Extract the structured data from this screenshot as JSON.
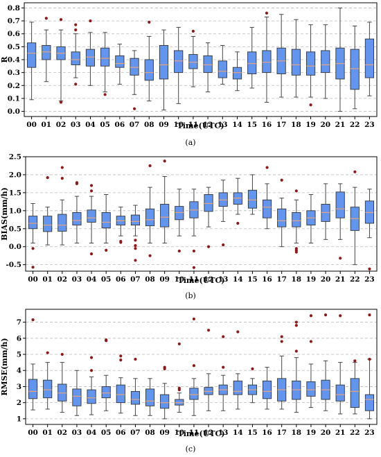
{
  "chart_data": [
    {
      "id": "a",
      "type": "box",
      "caption": "(a)",
      "xlabel": "Time(UTC)",
      "ylabel": "R",
      "ylim": [
        -0.04,
        0.84
      ],
      "yticks": [
        0.0,
        0.1,
        0.2,
        0.3,
        0.4,
        0.5,
        0.6,
        0.7,
        0.8
      ],
      "ytick_labels": [
        "0.0",
        "0.1",
        "0.2",
        "0.3",
        "0.4",
        "0.5",
        "0.6",
        "0.7",
        "0.8"
      ],
      "grid": "horizontal dashed",
      "categories": [
        "00",
        "01",
        "02",
        "03",
        "04",
        "05",
        "06",
        "07",
        "08",
        "09",
        "10",
        "11",
        "12",
        "13",
        "14",
        "15",
        "16",
        "17",
        "18",
        "19",
        "20",
        "21",
        "22",
        "23"
      ],
      "boxes": [
        {
          "whislo": 0.09,
          "q1": 0.34,
          "med": 0.45,
          "q3": 0.53,
          "whishi": 0.69,
          "fliers": []
        },
        {
          "whislo": 0.23,
          "q1": 0.4,
          "med": 0.46,
          "q3": 0.51,
          "whishi": 0.63,
          "fliers": [
            0.72
          ]
        },
        {
          "whislo": 0.08,
          "q1": 0.4,
          "med": 0.45,
          "q3": 0.5,
          "whishi": 0.63,
          "fliers": [
            0.71,
            0.07
          ]
        },
        {
          "whislo": 0.26,
          "q1": 0.36,
          "med": 0.4,
          "q3": 0.46,
          "whishi": 0.6,
          "fliers": [
            0.67,
            0.63,
            0.21
          ]
        },
        {
          "whislo": 0.2,
          "q1": 0.35,
          "med": 0.42,
          "q3": 0.48,
          "whishi": 0.61,
          "fliers": [
            0.7
          ]
        },
        {
          "whislo": 0.15,
          "q1": 0.35,
          "med": 0.41,
          "q3": 0.49,
          "whishi": 0.61,
          "fliers": [
            0.13
          ]
        },
        {
          "whislo": 0.21,
          "q1": 0.34,
          "med": 0.37,
          "q3": 0.43,
          "whishi": 0.52,
          "fliers": []
        },
        {
          "whislo": 0.13,
          "q1": 0.28,
          "med": 0.34,
          "q3": 0.41,
          "whishi": 0.47,
          "fliers": [
            0.02
          ]
        },
        {
          "whislo": 0.08,
          "q1": 0.24,
          "med": 0.3,
          "q3": 0.4,
          "whishi": 0.58,
          "fliers": [
            0.69
          ]
        },
        {
          "whislo": 0.01,
          "q1": 0.25,
          "med": 0.36,
          "q3": 0.51,
          "whishi": 0.63,
          "fliers": []
        },
        {
          "whislo": 0.06,
          "q1": 0.3,
          "med": 0.39,
          "q3": 0.47,
          "whishi": 0.65,
          "fliers": []
        },
        {
          "whislo": 0.19,
          "q1": 0.33,
          "med": 0.38,
          "q3": 0.44,
          "whishi": 0.58,
          "fliers": [
            0.62
          ]
        },
        {
          "whislo": 0.15,
          "q1": 0.3,
          "med": 0.36,
          "q3": 0.43,
          "whishi": 0.53,
          "fliers": []
        },
        {
          "whislo": 0.21,
          "q1": 0.26,
          "med": 0.31,
          "q3": 0.39,
          "whishi": 0.51,
          "fliers": []
        },
        {
          "whislo": 0.16,
          "q1": 0.25,
          "med": 0.3,
          "q3": 0.34,
          "whishi": 0.46,
          "fliers": []
        },
        {
          "whislo": 0.18,
          "q1": 0.29,
          "med": 0.37,
          "q3": 0.46,
          "whishi": 0.65,
          "fliers": []
        },
        {
          "whislo": 0.07,
          "q1": 0.3,
          "med": 0.38,
          "q3": 0.47,
          "whishi": 0.73,
          "fliers": [
            0.76
          ]
        },
        {
          "whislo": 0.11,
          "q1": 0.29,
          "med": 0.39,
          "q3": 0.49,
          "whishi": 0.75,
          "fliers": []
        },
        {
          "whislo": 0.11,
          "q1": 0.28,
          "med": 0.36,
          "q3": 0.48,
          "whishi": 0.71,
          "fliers": []
        },
        {
          "whislo": 0.11,
          "q1": 0.28,
          "med": 0.35,
          "q3": 0.46,
          "whishi": 0.67,
          "fliers": [
            0.05
          ]
        },
        {
          "whislo": 0.1,
          "q1": 0.3,
          "med": 0.36,
          "q3": 0.47,
          "whishi": 0.67,
          "fliers": []
        },
        {
          "whislo": 0.0,
          "q1": 0.25,
          "med": 0.37,
          "q3": 0.49,
          "whishi": 0.8,
          "fliers": []
        },
        {
          "whislo": 0.02,
          "q1": 0.17,
          "med": 0.33,
          "q3": 0.48,
          "whishi": 0.66,
          "fliers": []
        },
        {
          "whislo": 0.12,
          "q1": 0.26,
          "med": 0.36,
          "q3": 0.56,
          "whishi": 0.69,
          "fliers": []
        }
      ],
      "colors": {
        "box_fill": "#6495ed",
        "box_edge": "#333333",
        "median": "#e8a27c",
        "whisker": "#444444",
        "flier": "#8b1a1a",
        "grid": "#bbbbbb"
      }
    },
    {
      "id": "b",
      "type": "box",
      "caption": "(b)",
      "xlabel": "Time(UTC)",
      "ylabel": "BIAS(mm/h)",
      "ylim": [
        -0.68,
        2.5
      ],
      "yticks": [
        -0.5,
        0.0,
        0.5,
        1.0,
        1.5,
        2.0,
        2.5
      ],
      "ytick_labels": [
        "-0.5",
        "0.0",
        "0.5",
        "1.0",
        "1.5",
        "2.0",
        "2.5"
      ],
      "grid": "horizontal dashed",
      "categories": [
        "00",
        "01",
        "02",
        "03",
        "04",
        "05",
        "06",
        "07",
        "08",
        "09",
        "10",
        "11",
        "12",
        "13",
        "14",
        "15",
        "16",
        "17",
        "18",
        "19",
        "20",
        "21",
        "22",
        "23"
      ],
      "boxes": [
        {
          "whislo": 0.1,
          "q1": 0.5,
          "med": 0.65,
          "q3": 0.85,
          "whishi": 1.2,
          "fliers": [
            -0.05,
            -0.57
          ]
        },
        {
          "whislo": 0.05,
          "q1": 0.42,
          "med": 0.6,
          "q3": 0.85,
          "whishi": 1.1,
          "fliers": [
            1.92
          ]
        },
        {
          "whislo": 0.05,
          "q1": 0.43,
          "med": 0.6,
          "q3": 0.9,
          "whishi": 1.3,
          "fliers": [
            2.2,
            1.9
          ]
        },
        {
          "whislo": 0.1,
          "q1": 0.6,
          "med": 0.73,
          "q3": 0.95,
          "whishi": 1.4,
          "fliers": [
            1.78,
            1.75
          ]
        },
        {
          "whislo": 0.1,
          "q1": 0.68,
          "med": 0.8,
          "q3": 1.02,
          "whishi": 1.4,
          "fliers": [
            1.55,
            1.7,
            -0.2
          ]
        },
        {
          "whislo": 0.1,
          "q1": 0.52,
          "med": 0.68,
          "q3": 0.95,
          "whishi": 1.45,
          "fliers": [
            -0.1
          ]
        },
        {
          "whislo": 0.3,
          "q1": 0.6,
          "med": 0.72,
          "q3": 0.85,
          "whishi": 1.1,
          "fliers": [
            0.15,
            0.12
          ]
        },
        {
          "whislo": 0.3,
          "q1": 0.6,
          "med": 0.7,
          "q3": 0.88,
          "whishi": 1.15,
          "fliers": [
            0.18,
            0.03,
            -0.05,
            -0.38
          ]
        },
        {
          "whislo": 0.1,
          "q1": 0.58,
          "med": 0.75,
          "q3": 1.05,
          "whishi": 1.65,
          "fliers": [
            2.25,
            -0.25
          ]
        },
        {
          "whislo": 0.1,
          "q1": 0.55,
          "med": 0.82,
          "q3": 1.18,
          "whishi": 1.95,
          "fliers": [
            2.38
          ]
        },
        {
          "whislo": 0.3,
          "q1": 0.75,
          "med": 0.95,
          "q3": 1.12,
          "whishi": 1.6,
          "fliers": [
            -0.12
          ]
        },
        {
          "whislo": 0.3,
          "q1": 0.8,
          "med": 1.02,
          "q3": 1.25,
          "whishi": 1.6,
          "fliers": [
            -0.12,
            -0.58
          ]
        },
        {
          "whislo": 0.55,
          "q1": 0.98,
          "med": 1.2,
          "q3": 1.45,
          "whishi": 1.65,
          "fliers": [
            0.0
          ]
        },
        {
          "whislo": 0.7,
          "q1": 1.12,
          "med": 1.3,
          "q3": 1.5,
          "whishi": 1.85,
          "fliers": [
            0.05
          ]
        },
        {
          "whislo": 0.9,
          "q1": 1.18,
          "med": 1.35,
          "q3": 1.5,
          "whishi": 1.9,
          "fliers": [
            0.65
          ]
        },
        {
          "whislo": 0.9,
          "q1": 1.07,
          "med": 1.3,
          "q3": 1.57,
          "whishi": 2.0,
          "fliers": []
        },
        {
          "whislo": 0.5,
          "q1": 0.8,
          "med": 1.1,
          "q3": 1.3,
          "whishi": 1.75,
          "fliers": [
            2.2
          ]
        },
        {
          "whislo": 0.0,
          "q1": 0.55,
          "med": 0.72,
          "q3": 1.05,
          "whishi": 1.35,
          "fliers": [
            1.85
          ]
        },
        {
          "whislo": 0.1,
          "q1": 0.55,
          "med": 0.72,
          "q3": 0.95,
          "whishi": 1.3,
          "fliers": [
            1.55,
            -0.05,
            -0.1,
            -0.15
          ]
        },
        {
          "whislo": 0.1,
          "q1": 0.6,
          "med": 0.8,
          "q3": 1.0,
          "whishi": 1.45,
          "fliers": []
        },
        {
          "whislo": 0.2,
          "q1": 0.7,
          "med": 0.95,
          "q3": 1.18,
          "whishi": 1.75,
          "fliers": []
        },
        {
          "whislo": 0.2,
          "q1": 0.8,
          "med": 1.05,
          "q3": 1.52,
          "whishi": 1.75,
          "fliers": [
            -0.32
          ]
        },
        {
          "whislo": -0.5,
          "q1": 0.45,
          "med": 0.78,
          "q3": 1.1,
          "whishi": 1.65,
          "fliers": [
            2.08
          ]
        },
        {
          "whislo": 0.25,
          "q1": 0.65,
          "med": 0.95,
          "q3": 1.27,
          "whishi": 1.6,
          "fliers": [
            -0.62
          ]
        }
      ],
      "colors": {
        "box_fill": "#6495ed",
        "box_edge": "#333333",
        "median": "#e8a27c",
        "whisker": "#444444",
        "flier": "#8b1a1a",
        "grid": "#bbbbbb"
      }
    },
    {
      "id": "c",
      "type": "box",
      "caption": "(c)",
      "xlabel": "Time(UTC)",
      "ylabel": "RMSE(mm/h)",
      "ylim": [
        0.65,
        7.8
      ],
      "yticks": [
        1,
        2,
        3,
        4,
        5,
        6,
        7
      ],
      "ytick_labels": [
        "1",
        "2",
        "3",
        "4",
        "5",
        "6",
        "7"
      ],
      "grid": "horizontal dashed",
      "categories": [
        "00",
        "01",
        "02",
        "03",
        "04",
        "05",
        "06",
        "07",
        "08",
        "09",
        "10",
        "11",
        "12",
        "13",
        "14",
        "15",
        "16",
        "17",
        "18",
        "19",
        "20",
        "21",
        "22",
        "23"
      ],
      "boxes": [
        {
          "whislo": 1.55,
          "q1": 2.25,
          "med": 2.7,
          "q3": 3.45,
          "whishi": 4.4,
          "fliers": [
            7.15
          ]
        },
        {
          "whislo": 1.6,
          "q1": 2.3,
          "med": 2.8,
          "q3": 3.4,
          "whishi": 4.5,
          "fliers": [
            5.1
          ]
        },
        {
          "whislo": 1.4,
          "q1": 2.1,
          "med": 2.6,
          "q3": 3.15,
          "whishi": 4.5,
          "fliers": [
            5.0
          ]
        },
        {
          "whislo": 1.2,
          "q1": 1.8,
          "med": 2.4,
          "q3": 2.85,
          "whishi": 4.0,
          "fliers": []
        },
        {
          "whislo": 1.25,
          "q1": 1.95,
          "med": 2.3,
          "q3": 2.8,
          "whishi": 3.6,
          "fliers": [
            4.0,
            4.8
          ]
        },
        {
          "whislo": 1.5,
          "q1": 2.3,
          "med": 2.6,
          "q3": 3.0,
          "whishi": 3.7,
          "fliers": [
            5.9,
            5.85
          ]
        },
        {
          "whislo": 1.35,
          "q1": 2.0,
          "med": 2.5,
          "q3": 3.1,
          "whishi": 3.55,
          "fliers": [
            4.9,
            4.65
          ]
        },
        {
          "whislo": 1.2,
          "q1": 1.9,
          "med": 2.2,
          "q3": 2.7,
          "whishi": 3.5,
          "fliers": [
            4.7
          ]
        },
        {
          "whislo": 1.2,
          "q1": 1.8,
          "med": 2.1,
          "q3": 2.85,
          "whishi": 3.5,
          "fliers": []
        },
        {
          "whislo": 1.0,
          "q1": 1.65,
          "med": 2.0,
          "q3": 2.5,
          "whishi": 3.2,
          "fliers": [
            4.1,
            4.2
          ]
        },
        {
          "whislo": 1.4,
          "q1": 1.85,
          "med": 2.0,
          "q3": 2.2,
          "whishi": 2.6,
          "fliers": [
            2.9,
            2.8,
            5.65
          ]
        },
        {
          "whislo": 1.2,
          "q1": 2.2,
          "med": 2.5,
          "q3": 2.9,
          "whishi": 3.5,
          "fliers": [
            4.3,
            7.2
          ]
        },
        {
          "whislo": 1.5,
          "q1": 2.5,
          "med": 2.7,
          "q3": 2.95,
          "whishi": 3.8,
          "fliers": [
            6.5
          ]
        },
        {
          "whislo": 1.5,
          "q1": 2.5,
          "med": 2.8,
          "q3": 3.1,
          "whishi": 3.7,
          "fliers": [
            4.2,
            6.1
          ]
        },
        {
          "whislo": 1.6,
          "q1": 2.5,
          "med": 2.7,
          "q3": 3.35,
          "whishi": 3.8,
          "fliers": [
            6.4
          ]
        },
        {
          "whislo": 2.0,
          "q1": 2.5,
          "med": 2.8,
          "q3": 3.1,
          "whishi": 3.5,
          "fliers": [
            4.1
          ]
        },
        {
          "whislo": 1.6,
          "q1": 2.25,
          "med": 2.7,
          "q3": 3.35,
          "whishi": 4.2,
          "fliers": []
        },
        {
          "whislo": 1.6,
          "q1": 2.1,
          "med": 2.8,
          "q3": 3.5,
          "whishi": 4.9,
          "fliers": [
            5.8,
            6.1
          ]
        },
        {
          "whislo": 1.4,
          "q1": 2.2,
          "med": 2.8,
          "q3": 3.35,
          "whishi": 4.8,
          "fliers": [
            5.2,
            6.8,
            7.0
          ]
        },
        {
          "whislo": 1.7,
          "q1": 2.4,
          "med": 2.8,
          "q3": 3.3,
          "whishi": 4.4,
          "fliers": [
            5.8,
            7.4
          ]
        },
        {
          "whislo": 1.5,
          "q1": 2.2,
          "med": 2.8,
          "q3": 3.4,
          "whishi": 4.6,
          "fliers": [
            7.45
          ]
        },
        {
          "whislo": 1.3,
          "q1": 2.1,
          "med": 2.5,
          "q3": 3.1,
          "whishi": 4.5,
          "fliers": [
            7.4
          ]
        },
        {
          "whislo": 1.3,
          "q1": 1.7,
          "med": 2.7,
          "q3": 3.5,
          "whishi": 4.5,
          "fliers": [
            4.6
          ]
        },
        {
          "whislo": 1.0,
          "q1": 1.5,
          "med": 2.2,
          "q3": 2.5,
          "whishi": 4.7,
          "fliers": [
            4.7,
            7.45
          ]
        }
      ],
      "colors": {
        "box_fill": "#6495ed",
        "box_edge": "#333333",
        "median": "#e8a27c",
        "whisker": "#444444",
        "flier": "#8b1a1a",
        "grid": "#bbbbbb"
      }
    }
  ]
}
